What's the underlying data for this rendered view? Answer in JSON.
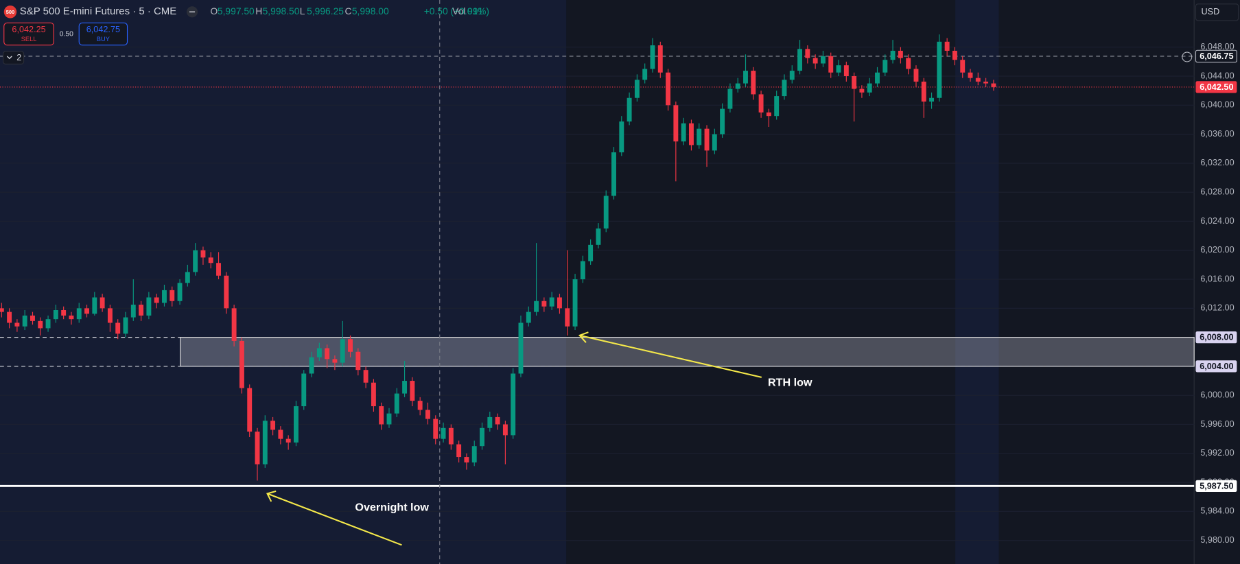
{
  "header": {
    "logo": "500",
    "title": "S&P 500 E-mini Futures · 5 · CME",
    "fields": [
      {
        "key": "O",
        "value": "5,997.50"
      },
      {
        "key": "H",
        "value": "5,998.50"
      },
      {
        "key": "L",
        "value": "5,996.25"
      },
      {
        "key": "C",
        "value": "5,998.00"
      }
    ],
    "change": "+0.50 (+0.01%)",
    "vol_key": "Vol",
    "vol": "991"
  },
  "trade": {
    "sell_price": "6,042.25",
    "sell": "SELL",
    "spread": "0.50",
    "buy_price": "6,042.75",
    "buy": "BUY"
  },
  "indicators": "2",
  "currency": "USD",
  "chart_data": {
    "type": "candlestick",
    "up_color": "#089981",
    "down_color": "#f23645",
    "ylim": [
      5976.75,
      6054.5
    ],
    "yticks": [
      {
        "value": 5980,
        "label": "5,980.00"
      },
      {
        "value": 5984,
        "label": "5,984.00"
      },
      {
        "value": 5988,
        "label": "5,988.00"
      },
      {
        "value": 5992,
        "label": "5,992.00"
      },
      {
        "value": 5996,
        "label": "5,996.00"
      },
      {
        "value": 6000,
        "label": "6,000.00"
      },
      {
        "value": 6004,
        "label": "6,004.00"
      },
      {
        "value": 6008,
        "label": "6,008.00"
      },
      {
        "value": 6012,
        "label": "6,012.00"
      },
      {
        "value": 6016,
        "label": "6,016.00"
      },
      {
        "value": 6020,
        "label": "6,020.00"
      },
      {
        "value": 6024,
        "label": "6,024.00"
      },
      {
        "value": 6028,
        "label": "6,028.00"
      },
      {
        "value": 6032,
        "label": "6,032.00"
      },
      {
        "value": 6036,
        "label": "6,036.00"
      },
      {
        "value": 6040,
        "label": "6,040.00"
      },
      {
        "value": 6044,
        "label": "6,044.00"
      },
      {
        "value": 6048,
        "label": "6,048.00"
      }
    ],
    "grid": true,
    "levels": [
      {
        "value": 6046.75,
        "label": "6,046.75",
        "style": "crosshair"
      },
      {
        "value": 6042.5,
        "label": "6,042.50",
        "style": "last"
      },
      {
        "value": 6008,
        "label": "6,008.00",
        "style": "zone"
      },
      {
        "value": 6004,
        "label": "6,004.00",
        "style": "zone-dashed"
      },
      {
        "value": 5987.5,
        "label": "5,987.50",
        "style": "solid"
      }
    ],
    "annotations": [
      "RTH low",
      "Overnight low"
    ],
    "candles": [
      [
        6012,
        6012.75,
        6010.75,
        6011.5
      ],
      [
        6011.5,
        6012,
        6009.25,
        6010
      ],
      [
        6010,
        6010.5,
        6008.75,
        6009.5
      ],
      [
        6009.5,
        6011.75,
        6009,
        6011
      ],
      [
        6011,
        6011.5,
        6009.75,
        6010.25
      ],
      [
        6010.25,
        6010.75,
        6008.25,
        6009.25
      ],
      [
        6009.25,
        6011,
        6008.75,
        6010.5
      ],
      [
        6010.5,
        6012.5,
        6010,
        6011.75
      ],
      [
        6011.75,
        6012.25,
        6010.5,
        6011
      ],
      [
        6011,
        6011.5,
        6009.75,
        6010.5
      ],
      [
        6010.5,
        6012.75,
        6010,
        6012
      ],
      [
        6012,
        6012.5,
        6010.75,
        6011.25
      ],
      [
        6011.25,
        6014.25,
        6011,
        6013.5
      ],
      [
        6013.5,
        6014,
        6011.5,
        6012
      ],
      [
        6012,
        6012.5,
        6008.75,
        6010
      ],
      [
        6010,
        6010.5,
        6007.75,
        6008.5
      ],
      [
        6008.5,
        6011.5,
        6008,
        6010.75
      ],
      [
        6010.75,
        6016,
        6010.25,
        6012.5
      ],
      [
        6012.5,
        6013,
        6010.25,
        6011
      ],
      [
        6011,
        6014.25,
        6010.5,
        6013.5
      ],
      [
        6013.5,
        6014,
        6012,
        6012.75
      ],
      [
        6012.75,
        6015.25,
        6012.25,
        6014.5
      ],
      [
        6014.5,
        6015,
        6012.25,
        6013
      ],
      [
        6013,
        6016,
        6012.5,
        6015.5
      ],
      [
        6015.5,
        6018,
        6015,
        6017
      ],
      [
        6017,
        6021,
        6016.5,
        6020
      ],
      [
        6020,
        6020.5,
        6018,
        6019
      ],
      [
        6019,
        6019.75,
        6017.5,
        6018.25
      ],
      [
        6018.25,
        6019.75,
        6016,
        6016.5
      ],
      [
        6016.5,
        6017,
        6011.25,
        6012
      ],
      [
        6012,
        6012.5,
        6006.75,
        6007.5
      ],
      [
        6007.5,
        6008,
        6000.25,
        6001
      ],
      [
        6001,
        6001.5,
        5994.25,
        5995
      ],
      [
        5995,
        5995.5,
        5988.25,
        5990.5
      ],
      [
        5990.5,
        5997.25,
        5990,
        5996.5
      ],
      [
        5996.5,
        5997,
        5994.5,
        5995.25
      ],
      [
        5995.25,
        5995.75,
        5993.25,
        5994
      ],
      [
        5994,
        5994.5,
        5992.5,
        5993.5
      ],
      [
        5993.5,
        5999.25,
        5993,
        5998.5
      ],
      [
        5998.5,
        6003.5,
        5998,
        6003
      ],
      [
        6003,
        6006,
        6002.5,
        6005.25
      ],
      [
        6005.25,
        6007.25,
        6004.75,
        6006.5
      ],
      [
        6006.5,
        6007,
        6003.75,
        6005
      ],
      [
        6005,
        6005.5,
        6003.5,
        6004.5
      ],
      [
        6004.5,
        6010.25,
        6004,
        6007.75
      ],
      [
        6007.75,
        6008.25,
        6005.25,
        6006
      ],
      [
        6006,
        6006.5,
        6002.75,
        6003.5
      ],
      [
        6003.5,
        6004,
        6001,
        6001.75
      ],
      [
        6001.75,
        6002.25,
        5997.75,
        5998.5
      ],
      [
        5998.5,
        5999,
        5995.25,
        5996
      ],
      [
        5996,
        5998.25,
        5995.5,
        5997.5
      ],
      [
        5997.5,
        6001,
        5997,
        6000.25
      ],
      [
        6000.25,
        6004.75,
        5999.75,
        6002
      ],
      [
        6002,
        6002.5,
        5998.5,
        5999.25
      ],
      [
        5999.25,
        5999.75,
        5997.25,
        5998
      ],
      [
        5998,
        5999,
        5996,
        5996.75
      ],
      [
        5996.75,
        5997.25,
        5993.25,
        5994
      ],
      [
        5994,
        5996.25,
        5993.5,
        5995.5
      ],
      [
        5995.5,
        5996,
        5992.5,
        5993.25
      ],
      [
        5993.25,
        5993.75,
        5990.75,
        5991.5
      ],
      [
        5991.5,
        5992,
        5989.75,
        5990.75
      ],
      [
        5990.75,
        5993.75,
        5990.25,
        5993
      ],
      [
        5993,
        5996.25,
        5992.5,
        5995.5
      ],
      [
        5995.5,
        5997.75,
        5995,
        5997
      ],
      [
        5997,
        5997.5,
        5995.25,
        5996
      ],
      [
        5996,
        5996.5,
        5990.5,
        5994.5
      ],
      [
        5994.5,
        6003.75,
        5994,
        6003
      ],
      [
        6003,
        6011,
        6002.5,
        6010
      ],
      [
        6010,
        6012.25,
        6009.5,
        6011.5
      ],
      [
        6011.5,
        6021,
        6011,
        6013
      ],
      [
        6013,
        6013.5,
        6011.5,
        6012.25
      ],
      [
        6012.25,
        6014.25,
        6011.75,
        6013.5
      ],
      [
        6013.5,
        6014,
        6011.25,
        6012
      ],
      [
        6012,
        6020,
        6008.25,
        6009.5
      ],
      [
        6009.5,
        6016.75,
        6009,
        6016
      ],
      [
        6016,
        6019.25,
        6015.5,
        6018.5
      ],
      [
        6018.5,
        6021.5,
        6018,
        6020.75
      ],
      [
        6020.75,
        6023.75,
        6020.25,
        6023
      ],
      [
        6023,
        6028.25,
        6022.5,
        6027.5
      ],
      [
        6027.5,
        6034.25,
        6027,
        6033.5
      ],
      [
        6033.5,
        6038.5,
        6033,
        6037.75
      ],
      [
        6037.75,
        6041.75,
        6037.25,
        6041
      ],
      [
        6041,
        6044.25,
        6040.5,
        6043.5
      ],
      [
        6043.5,
        6045.75,
        6043,
        6045
      ],
      [
        6045,
        6049.25,
        6044.5,
        6048.25
      ],
      [
        6048.25,
        6048.75,
        6043.75,
        6044.5
      ],
      [
        6044.5,
        6045,
        6039.25,
        6040
      ],
      [
        6040,
        6040.5,
        6029.5,
        6035
      ],
      [
        6035,
        6038.25,
        6034.5,
        6037.5
      ],
      [
        6037.5,
        6038,
        6033.75,
        6034.5
      ],
      [
        6034.5,
        6037.5,
        6034,
        6036.75
      ],
      [
        6036.75,
        6037.25,
        6031.5,
        6033.75
      ],
      [
        6033.75,
        6036.75,
        6033.25,
        6036
      ],
      [
        6036,
        6040.25,
        6035.5,
        6039.5
      ],
      [
        6039.5,
        6043,
        6039,
        6042.25
      ],
      [
        6042.25,
        6043.75,
        6041.75,
        6043
      ],
      [
        6043,
        6047,
        6042.5,
        6044.75
      ],
      [
        6044.75,
        6045.25,
        6040.75,
        6041.5
      ],
      [
        6041.5,
        6042,
        6038.25,
        6039
      ],
      [
        6039,
        6039.5,
        6037,
        6038.5
      ],
      [
        6038.5,
        6042,
        6038,
        6041.25
      ],
      [
        6041.25,
        6044.25,
        6040.75,
        6043.5
      ],
      [
        6043.5,
        6045.5,
        6043,
        6044.75
      ],
      [
        6044.75,
        6049,
        6044.25,
        6047.75
      ],
      [
        6047.75,
        6048.25,
        6045.75,
        6046.5
      ],
      [
        6046.5,
        6047,
        6045,
        6045.75
      ],
      [
        6045.75,
        6047.5,
        6045.25,
        6046.75
      ],
      [
        6046.75,
        6047.25,
        6043.75,
        6044.5
      ],
      [
        6044.5,
        6046.25,
        6044,
        6045.5
      ],
      [
        6045.5,
        6046,
        6043.25,
        6044
      ],
      [
        6044,
        6044.5,
        6037.75,
        6042.25
      ],
      [
        6042.25,
        6042.75,
        6041,
        6041.75
      ],
      [
        6041.75,
        6043.75,
        6041.25,
        6043
      ],
      [
        6043,
        6045.25,
        6042.5,
        6044.5
      ],
      [
        6044.5,
        6047,
        6044,
        6046.25
      ],
      [
        6046.25,
        6049,
        6045.75,
        6047.5
      ],
      [
        6047.5,
        6048,
        6045.75,
        6046.5
      ],
      [
        6046.5,
        6047,
        6044.25,
        6045
      ],
      [
        6045,
        6045.5,
        6042.5,
        6043.25
      ],
      [
        6043.25,
        6043.75,
        6038.25,
        6040.5
      ],
      [
        6040.5,
        6041.75,
        6039.5,
        6041
      ],
      [
        6041,
        6049.75,
        6040.5,
        6048.75
      ],
      [
        6048.75,
        6049.25,
        6046.75,
        6047.5
      ],
      [
        6047.5,
        6048,
        6045.5,
        6046.25
      ],
      [
        6046.25,
        6046.75,
        6043.75,
        6044.5
      ],
      [
        6044.5,
        6045,
        6043.25,
        6043.75
      ],
      [
        6043.75,
        6044.5,
        6042.75,
        6043.25
      ],
      [
        6043.25,
        6043.75,
        6042.5,
        6043
      ],
      [
        6043,
        6043.5,
        6042,
        6042.5
      ]
    ]
  }
}
